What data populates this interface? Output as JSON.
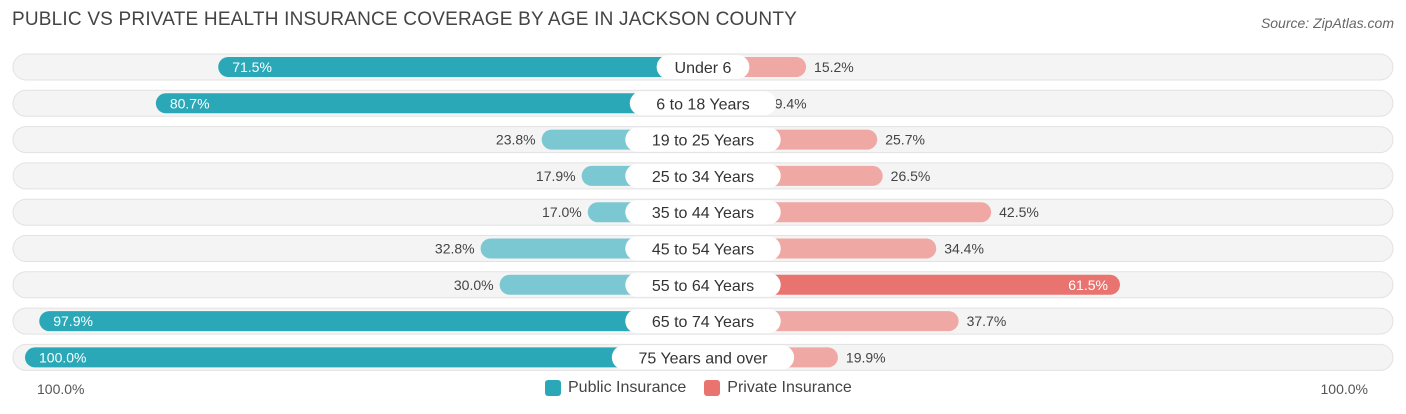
{
  "header": {
    "title": "PUBLIC VS PRIVATE HEALTH INSURANCE COVERAGE BY AGE IN JACKSON COUNTY",
    "source": "Source: ZipAtlas.com"
  },
  "axis": {
    "left_label": "100.0%",
    "right_label": "100.0%"
  },
  "colors": {
    "public_dark": "#2BA8B8",
    "public_light": "#7CC8D2",
    "private_dark": "#E8736F",
    "private_light": "#F0A8A5",
    "track": "#EFEFEF"
  },
  "chart_data": {
    "type": "bar",
    "orientation": "horizontal-diverging",
    "title": "PUBLIC VS PRIVATE HEALTH INSURANCE COVERAGE BY AGE IN JACKSON COUNTY",
    "categories": [
      "Under 6",
      "6 to 18 Years",
      "19 to 25 Years",
      "25 to 34 Years",
      "35 to 44 Years",
      "45 to 54 Years",
      "55 to 64 Years",
      "65 to 74 Years",
      "75 Years and over"
    ],
    "xlim": [
      -100,
      100
    ],
    "series": [
      {
        "name": "Public Insurance",
        "values": [
          71.5,
          80.7,
          23.8,
          17.9,
          17.0,
          32.8,
          30.0,
          97.9,
          100.0
        ],
        "labels": [
          "71.5%",
          "80.7%",
          "23.8%",
          "17.9%",
          "17.0%",
          "32.8%",
          "30.0%",
          "97.9%",
          "100.0%"
        ]
      },
      {
        "name": "Private Insurance",
        "values": [
          15.2,
          9.4,
          25.7,
          26.5,
          42.5,
          34.4,
          61.5,
          37.7,
          19.9
        ],
        "labels": [
          "15.2%",
          "9.4%",
          "25.7%",
          "26.5%",
          "42.5%",
          "34.4%",
          "61.5%",
          "37.7%",
          "19.9%"
        ]
      }
    ],
    "legend": [
      "Public Insurance",
      "Private Insurance"
    ],
    "legend_position": "bottom-center"
  }
}
